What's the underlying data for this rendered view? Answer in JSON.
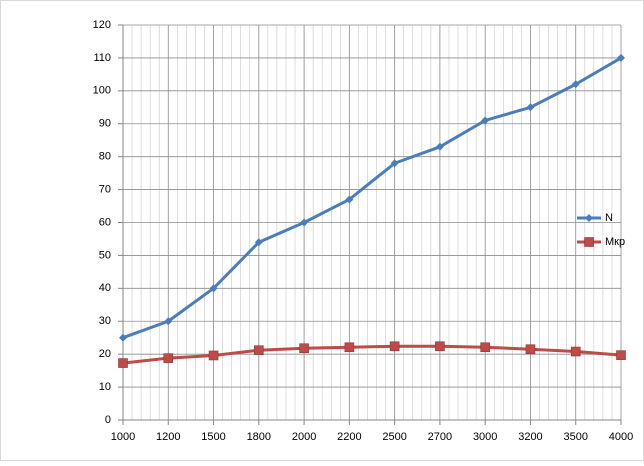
{
  "chart_data": {
    "type": "line",
    "categories": [
      "1000",
      "1200",
      "1500",
      "1800",
      "2000",
      "2200",
      "2500",
      "2700",
      "3000",
      "3200",
      "3500",
      "4000"
    ],
    "series": [
      {
        "name": "N",
        "color": "#4a7ebb",
        "marker": "diamond",
        "values": [
          25,
          30,
          40,
          54,
          60,
          67,
          78,
          83,
          91,
          95,
          102,
          110
        ]
      },
      {
        "name": "Мкр",
        "color": "#be4b48",
        "marker": "square",
        "values": [
          17.3,
          18.8,
          19.6,
          21.2,
          21.8,
          22.1,
          22.4,
          22.4,
          22.1,
          21.5,
          20.8,
          19.7
        ]
      }
    ],
    "ylim": [
      0,
      120
    ],
    "yticks": [
      0,
      10,
      20,
      30,
      40,
      50,
      60,
      70,
      80,
      90,
      100,
      110,
      120
    ],
    "grid": true,
    "legend": "right"
  }
}
